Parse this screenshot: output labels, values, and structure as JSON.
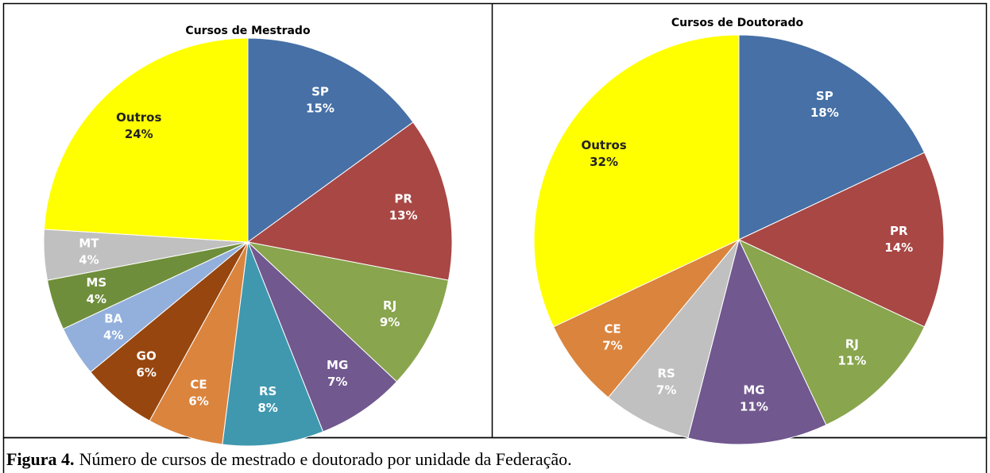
{
  "chart_data": [
    {
      "type": "pie",
      "title": "Cursos de Mestrado",
      "categories": [
        "SP",
        "PR",
        "RJ",
        "MG",
        "RS",
        "CE",
        "GO",
        "BA",
        "MS",
        "MT",
        "Outros"
      ],
      "values": [
        15,
        13,
        9,
        7,
        8,
        6,
        6,
        4,
        4,
        4,
        24
      ],
      "value_labels": [
        "15%",
        "13%",
        "9%",
        "7%",
        "8%",
        "6%",
        "6%",
        "4%",
        "4%",
        "4%",
        "24%"
      ],
      "colors": [
        "#4670a6",
        "#a84744",
        "#89a54e",
        "#71588f",
        "#4098af",
        "#db843d",
        "#97460f",
        "#93b0dc",
        "#6f8e3b",
        "#c0c0c0",
        "#ffff00"
      ]
    },
    {
      "type": "pie",
      "title": "Cursos de Doutorado",
      "categories": [
        "SP",
        "PR",
        "RJ",
        "MG",
        "RS",
        "CE",
        "Outros"
      ],
      "values": [
        18,
        14,
        11,
        11,
        7,
        7,
        32
      ],
      "value_labels": [
        "18%",
        "14%",
        "11%",
        "11%",
        "7%",
        "7%",
        "32%"
      ],
      "colors": [
        "#4670a6",
        "#a84744",
        "#89a54e",
        "#71588f",
        "#c0c0c0",
        "#db843d",
        "#ffff00"
      ]
    }
  ],
  "caption": {
    "label": "Figura 4.",
    "text": "Número de cursos de mestrado e doutorado por unidade da Federação."
  }
}
